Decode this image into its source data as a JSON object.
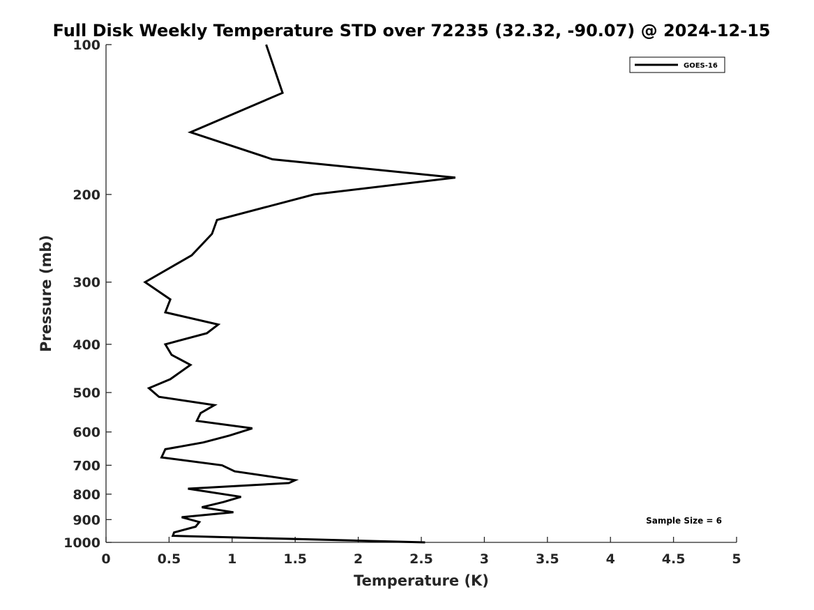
{
  "chart_data": {
    "type": "line",
    "title": "Full Disk Weekly Temperature STD over 72235 (32.32, -90.07) @ 2024-12-15",
    "xlabel": "Temperature (K)",
    "ylabel": "Pressure (mb)",
    "xlim": [
      0,
      5
    ],
    "ylim": [
      100,
      1000
    ],
    "yscale": "log",
    "y_reversed": true,
    "xticks": [
      0,
      0.5,
      1,
      1.5,
      2,
      2.5,
      3,
      3.5,
      4,
      4.5,
      5
    ],
    "xtick_labels": [
      "0",
      "0.5",
      "1",
      "1.5",
      "2",
      "2.5",
      "3",
      "3.5",
      "4",
      "4.5",
      "5"
    ],
    "yticks": [
      100,
      200,
      300,
      400,
      500,
      600,
      700,
      800,
      900,
      1000
    ],
    "ytick_labels": [
      "100",
      "200",
      "300",
      "400",
      "500",
      "600",
      "700",
      "800",
      "900",
      "1000"
    ],
    "grid": false,
    "legend": {
      "position": "top-right",
      "entries": [
        "GOES-16"
      ]
    },
    "annotation": "Sample Size = 6",
    "series": [
      {
        "name": "GOES-16",
        "color": "#000000",
        "points": [
          [
            1.27,
            100
          ],
          [
            1.4,
            125
          ],
          [
            0.67,
            150
          ],
          [
            1.32,
            170
          ],
          [
            2.77,
            185
          ],
          [
            1.65,
            200
          ],
          [
            0.88,
            225
          ],
          [
            0.84,
            240
          ],
          [
            0.68,
            265
          ],
          [
            0.31,
            300
          ],
          [
            0.51,
            325
          ],
          [
            0.47,
            345
          ],
          [
            0.89,
            365
          ],
          [
            0.8,
            380
          ],
          [
            0.47,
            400
          ],
          [
            0.52,
            420
          ],
          [
            0.67,
            440
          ],
          [
            0.51,
            470
          ],
          [
            0.34,
            490
          ],
          [
            0.42,
            510
          ],
          [
            0.86,
            530
          ],
          [
            0.75,
            550
          ],
          [
            0.72,
            570
          ],
          [
            1.16,
            590
          ],
          [
            0.98,
            610
          ],
          [
            0.77,
            630
          ],
          [
            0.47,
            650
          ],
          [
            0.44,
            675
          ],
          [
            0.92,
            700
          ],
          [
            1.02,
            720
          ],
          [
            1.5,
            750
          ],
          [
            1.45,
            760
          ],
          [
            0.65,
            780
          ],
          [
            1.07,
            810
          ],
          [
            0.93,
            830
          ],
          [
            0.76,
            850
          ],
          [
            1.01,
            870
          ],
          [
            0.6,
            890
          ],
          [
            0.74,
            910
          ],
          [
            0.71,
            930
          ],
          [
            0.54,
            955
          ],
          [
            0.53,
            970
          ],
          [
            2.53,
            1000
          ]
        ]
      }
    ]
  }
}
